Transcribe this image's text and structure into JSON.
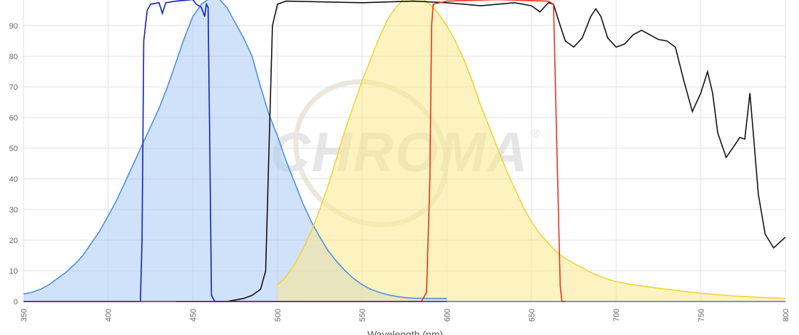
{
  "chart_data": {
    "type": "line",
    "x_label": "Wavelength (nm)",
    "watermark": "CHROMA",
    "watermark_mark": "®",
    "xlim": [
      350,
      800
    ],
    "xticks": [
      350,
      400,
      450,
      500,
      550,
      600,
      650,
      700,
      750,
      800
    ],
    "ylim": [
      0,
      100
    ],
    "yticks": [
      0,
      10,
      20,
      30,
      40,
      50,
      60,
      70,
      80,
      90
    ],
    "grid": true,
    "series": [
      {
        "color": "#4a90e2",
        "fill": "#a9c9f5",
        "x": [
          350,
          355,
          360,
          365,
          370,
          375,
          380,
          385,
          390,
          395,
          400,
          405,
          410,
          415,
          420,
          425,
          430,
          435,
          440,
          445,
          450,
          455,
          460,
          465,
          470,
          475,
          480,
          485,
          490,
          495,
          500,
          505,
          510,
          515,
          520,
          525,
          530,
          535,
          540,
          545,
          550,
          555,
          560,
          565,
          570,
          575,
          580,
          590,
          600
        ],
        "values": [
          2.5,
          3,
          4,
          5.5,
          7.5,
          9.5,
          12,
          15,
          19,
          23,
          28,
          33,
          39,
          45,
          51,
          57,
          63,
          70,
          78,
          86,
          93,
          97,
          99,
          99,
          96,
          91,
          86,
          80,
          70,
          61,
          54,
          46,
          39,
          32,
          26,
          21,
          16.5,
          13,
          10,
          7.5,
          5.5,
          4,
          3,
          2.2,
          1.7,
          1.3,
          1.1,
          1,
          1
        ]
      },
      {
        "color": "#f2d23a",
        "fill": "#fbe98c",
        "x": [
          500,
          505,
          510,
          515,
          520,
          525,
          530,
          535,
          540,
          545,
          550,
          555,
          560,
          565,
          570,
          575,
          580,
          585,
          590,
          595,
          600,
          605,
          610,
          615,
          620,
          625,
          630,
          635,
          640,
          645,
          650,
          655,
          660,
          665,
          670,
          675,
          680,
          685,
          690,
          695,
          700,
          710,
          720,
          730,
          740,
          750,
          760,
          770,
          780,
          790,
          800
        ],
        "values": [
          5.5,
          8,
          12,
          17,
          23,
          30,
          38,
          47,
          56,
          64,
          72,
          79,
          86,
          92,
          96,
          99,
          100,
          99,
          97,
          94,
          90,
          85,
          79,
          72,
          64,
          57,
          50,
          43,
          37,
          31,
          26,
          22,
          19,
          16,
          14,
          12.5,
          11,
          9.5,
          8.3,
          7.3,
          6.5,
          5.5,
          4.7,
          4,
          3.3,
          2.7,
          2.2,
          1.8,
          1.5,
          1.2,
          1
        ]
      },
      {
        "color": "#1020c0",
        "x": [
          350,
          380,
          419,
          420,
          421,
          423,
          425,
          430,
          432,
          434,
          440,
          450,
          452,
          455,
          457,
          458,
          459,
          460,
          461,
          462,
          463,
          600
        ],
        "values": [
          0,
          0,
          0,
          20,
          85,
          95,
          97,
          97.5,
          94,
          97.5,
          98,
          98.5,
          97,
          96,
          93,
          97,
          96,
          50,
          2,
          1,
          0,
          0
        ]
      },
      {
        "color": "#111111",
        "x": [
          440,
          470,
          475,
          480,
          485,
          490,
          493,
          495,
          497,
          500,
          505,
          550,
          580,
          600,
          620,
          640,
          650,
          655,
          660,
          663,
          667,
          670,
          675,
          680,
          685,
          688,
          691,
          695,
          700,
          705,
          710,
          715,
          720,
          725,
          730,
          735,
          740,
          745,
          750,
          754,
          757,
          760,
          765,
          770,
          773,
          776,
          779,
          781,
          784,
          788,
          793,
          800
        ],
        "values": [
          0,
          0,
          0.5,
          1,
          2,
          4,
          10,
          50,
          90,
          97,
          98,
          97.5,
          98,
          97.5,
          96.5,
          97.5,
          96.5,
          94.5,
          97.5,
          97,
          90,
          85,
          83,
          86,
          93,
          95.5,
          93,
          86,
          83,
          84,
          87,
          88.5,
          87,
          85.5,
          85,
          83,
          72,
          62,
          68,
          75,
          68,
          55,
          47,
          51,
          53.5,
          53,
          68,
          55,
          35,
          22,
          17.5,
          21
        ]
      },
      {
        "color": "#e8321a",
        "x": [
          350,
          585,
          588,
          590,
          591,
          592,
          600,
          630,
          660,
          663,
          665,
          667,
          668,
          670
        ],
        "values": [
          0,
          0,
          3,
          40,
          90,
          97,
          98,
          98.5,
          98,
          97,
          50,
          5,
          0,
          0
        ]
      }
    ]
  }
}
